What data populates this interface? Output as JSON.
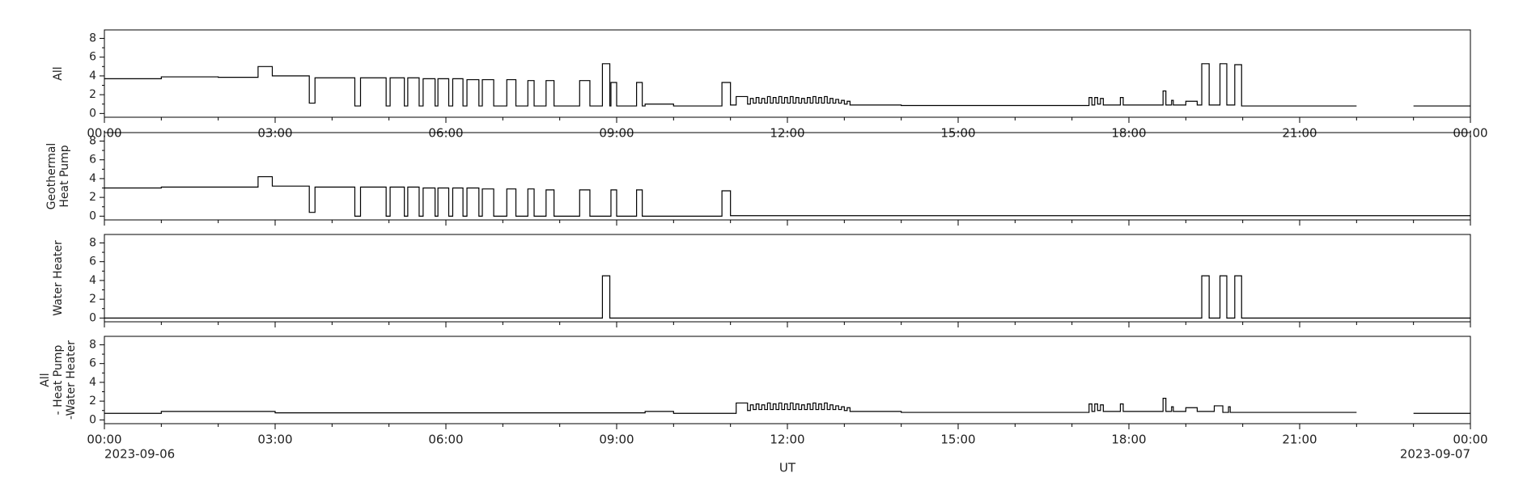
{
  "chart_data": [
    {
      "type": "line",
      "ylabel": [
        "All"
      ],
      "color": "#000000",
      "drawstyle": "steps-post",
      "xlim": [
        0,
        24
      ],
      "xminorticks": [
        1,
        2,
        4,
        5,
        7,
        8,
        10,
        11,
        13,
        14,
        16,
        17,
        19,
        20,
        22,
        23
      ],
      "xticks": [
        {
          "value": 0,
          "label": "00:00"
        },
        {
          "value": 3,
          "label": "03:00"
        },
        {
          "value": 6,
          "label": "06:00"
        },
        {
          "value": 9,
          "label": "09:00"
        },
        {
          "value": 12,
          "label": "12:00"
        },
        {
          "value": 15,
          "label": "15:00"
        },
        {
          "value": 18,
          "label": "18:00"
        },
        {
          "value": 21,
          "label": "21:00"
        },
        {
          "value": 24,
          "label": "00:00"
        }
      ],
      "ylim": [
        -0.4,
        8.9
      ],
      "yticks": [
        0,
        2,
        4,
        6,
        8
      ],
      "x": [
        0,
        1.0,
        2.0,
        2.7,
        2.95,
        3.6,
        3.7,
        4.4,
        4.5,
        4.95,
        5.02,
        5.27,
        5.33,
        5.53,
        5.6,
        5.81,
        5.86,
        6.05,
        6.12,
        6.3,
        6.37,
        6.58,
        6.64,
        6.84,
        7.07,
        7.23,
        7.44,
        7.55,
        7.76,
        7.9,
        8.35,
        8.53,
        8.75,
        8.88,
        8.9,
        9.0,
        9.35,
        9.45,
        9.5,
        10.0,
        10.85,
        11.0,
        11.1,
        11.3,
        11.35,
        11.4,
        11.45,
        11.5,
        11.55,
        11.6,
        11.65,
        11.7,
        11.75,
        11.8,
        11.85,
        11.9,
        11.95,
        12.0,
        12.05,
        12.1,
        12.15,
        12.2,
        12.25,
        12.3,
        12.35,
        12.4,
        12.45,
        12.5,
        12.55,
        12.6,
        12.65,
        12.7,
        12.75,
        12.8,
        12.85,
        12.9,
        12.95,
        13.0,
        13.05,
        13.1,
        14.0,
        17.3,
        17.35,
        17.4,
        17.45,
        17.5,
        17.55,
        17.85,
        17.9,
        18.6,
        18.65,
        18.75,
        18.78,
        19.0,
        19.2,
        19.28,
        19.41,
        19.6,
        19.72,
        19.86,
        19.98,
        22.0,
        23.0,
        24
      ],
      "values": [
        3.7,
        3.9,
        3.85,
        5.0,
        4.0,
        1.1,
        3.8,
        0.8,
        3.8,
        0.8,
        3.8,
        0.8,
        3.8,
        0.8,
        3.7,
        0.8,
        3.7,
        0.8,
        3.7,
        0.8,
        3.6,
        0.8,
        3.6,
        0.8,
        3.6,
        0.8,
        3.5,
        0.8,
        3.5,
        0.8,
        3.5,
        0.8,
        5.3,
        0.8,
        3.3,
        0.8,
        3.3,
        0.8,
        1.0,
        0.8,
        3.3,
        0.9,
        1.8,
        1.0,
        1.6,
        1.1,
        1.7,
        1.1,
        1.6,
        1.1,
        1.8,
        1.1,
        1.7,
        1.1,
        1.8,
        1.1,
        1.7,
        1.1,
        1.8,
        1.1,
        1.7,
        1.1,
        1.6,
        1.1,
        1.7,
        1.1,
        1.8,
        1.1,
        1.7,
        1.1,
        1.8,
        1.1,
        1.6,
        1.1,
        1.5,
        1.1,
        1.4,
        1.0,
        1.3,
        0.9,
        0.85,
        1.7,
        0.9,
        1.7,
        1.0,
        1.6,
        0.9,
        1.7,
        0.9,
        2.4,
        0.9,
        1.4,
        0.9,
        1.3,
        0.9,
        5.3,
        0.9,
        5.3,
        0.9,
        5.2,
        0.8,
        null,
        0.8,
        0.8
      ]
    },
    {
      "type": "line",
      "ylabel": [
        "Geothermal",
        "Heat Pump"
      ],
      "color": "#000000",
      "drawstyle": "steps-post",
      "xlim": [
        0,
        24
      ],
      "xminorticks": [
        1,
        2,
        4,
        5,
        7,
        8,
        10,
        11,
        13,
        14,
        16,
        17,
        19,
        20,
        22,
        23
      ],
      "xticks": [
        0,
        3,
        6,
        9,
        12,
        15,
        18,
        21,
        24
      ],
      "ylim": [
        -0.4,
        8.9
      ],
      "yticks": [
        0,
        2,
        4,
        6,
        8
      ],
      "x": [
        0,
        1.0,
        2.7,
        2.95,
        3.6,
        3.7,
        4.4,
        4.5,
        4.95,
        5.02,
        5.27,
        5.33,
        5.53,
        5.6,
        5.81,
        5.86,
        6.05,
        6.12,
        6.3,
        6.37,
        6.58,
        6.64,
        6.84,
        7.07,
        7.23,
        7.44,
        7.55,
        7.76,
        7.9,
        8.35,
        8.53,
        8.9,
        9.0,
        9.35,
        9.45,
        10.85,
        11.0,
        24
      ],
      "values": [
        3.0,
        3.1,
        4.2,
        3.2,
        0.4,
        3.1,
        0,
        3.1,
        0,
        3.1,
        0,
        3.1,
        0,
        3.0,
        0,
        3.0,
        0,
        3.0,
        0,
        3.0,
        0,
        2.9,
        0,
        2.9,
        0,
        2.9,
        0,
        2.8,
        0,
        2.8,
        0,
        2.8,
        0,
        2.8,
        0,
        2.7,
        0.05,
        0.05
      ]
    },
    {
      "type": "line",
      "ylabel": [
        "Water Heater"
      ],
      "color": "#000000",
      "drawstyle": "steps-post",
      "xlim": [
        0,
        24
      ],
      "xminorticks": [
        1,
        2,
        4,
        5,
        7,
        8,
        10,
        11,
        13,
        14,
        16,
        17,
        19,
        20,
        22,
        23
      ],
      "xticks": [
        0,
        3,
        6,
        9,
        12,
        15,
        18,
        21,
        24
      ],
      "ylim": [
        -0.4,
        8.9
      ],
      "yticks": [
        0,
        2,
        4,
        6,
        8
      ],
      "x": [
        0,
        8.75,
        8.88,
        19.28,
        19.41,
        19.6,
        19.72,
        19.86,
        19.98,
        24
      ],
      "values": [
        0,
        4.5,
        0,
        4.5,
        0,
        4.5,
        0,
        4.5,
        0,
        0
      ]
    },
    {
      "type": "line",
      "ylabel": [
        "All",
        "- Heat Pump",
        "-Water Heater"
      ],
      "color": "#000000",
      "drawstyle": "steps-post",
      "xlim": [
        0,
        24
      ],
      "xminorticks": [
        1,
        2,
        4,
        5,
        7,
        8,
        10,
        11,
        13,
        14,
        16,
        17,
        19,
        20,
        22,
        23
      ],
      "xticks": [
        {
          "value": 0,
          "label": "00:00"
        },
        {
          "value": 3,
          "label": "03:00"
        },
        {
          "value": 6,
          "label": "06:00"
        },
        {
          "value": 9,
          "label": "09:00"
        },
        {
          "value": 12,
          "label": "12:00"
        },
        {
          "value": 15,
          "label": "15:00"
        },
        {
          "value": 18,
          "label": "18:00"
        },
        {
          "value": 21,
          "label": "21:00"
        },
        {
          "value": 24,
          "label": "00:00"
        }
      ],
      "xtick_dates": [
        {
          "value": 0,
          "label": "2023-09-06"
        },
        {
          "value": 24,
          "label": "2023-09-07"
        }
      ],
      "xlabel": "UT",
      "ylim": [
        -0.4,
        8.9
      ],
      "yticks": [
        0,
        2,
        4,
        6,
        8
      ],
      "x": [
        0,
        1.0,
        3.0,
        9.5,
        10.0,
        11.1,
        11.3,
        11.35,
        11.4,
        11.45,
        11.5,
        11.55,
        11.6,
        11.65,
        11.7,
        11.75,
        11.8,
        11.85,
        11.9,
        11.95,
        12.0,
        12.05,
        12.1,
        12.15,
        12.2,
        12.25,
        12.3,
        12.35,
        12.4,
        12.45,
        12.5,
        12.55,
        12.6,
        12.65,
        12.7,
        12.75,
        12.8,
        12.85,
        12.9,
        12.95,
        13.0,
        13.05,
        13.1,
        14.0,
        17.3,
        17.35,
        17.4,
        17.45,
        17.5,
        17.55,
        17.85,
        17.9,
        18.6,
        18.65,
        18.75,
        18.78,
        19.0,
        19.2,
        19.5,
        19.65,
        19.75,
        19.78,
        22.0,
        23.0,
        24
      ],
      "values": [
        0.7,
        0.9,
        0.75,
        0.9,
        0.7,
        1.8,
        1.0,
        1.6,
        1.1,
        1.7,
        1.1,
        1.6,
        1.1,
        1.8,
        1.1,
        1.7,
        1.1,
        1.8,
        1.1,
        1.7,
        1.1,
        1.8,
        1.1,
        1.7,
        1.1,
        1.6,
        1.1,
        1.7,
        1.1,
        1.8,
        1.1,
        1.7,
        1.1,
        1.8,
        1.1,
        1.6,
        1.1,
        1.5,
        1.1,
        1.4,
        1.0,
        1.3,
        0.9,
        0.8,
        1.7,
        0.9,
        1.7,
        1.0,
        1.6,
        0.9,
        1.7,
        0.9,
        2.3,
        0.9,
        1.4,
        0.9,
        1.3,
        0.9,
        1.5,
        0.8,
        1.4,
        0.8,
        null,
        0.7,
        0.7
      ]
    }
  ]
}
